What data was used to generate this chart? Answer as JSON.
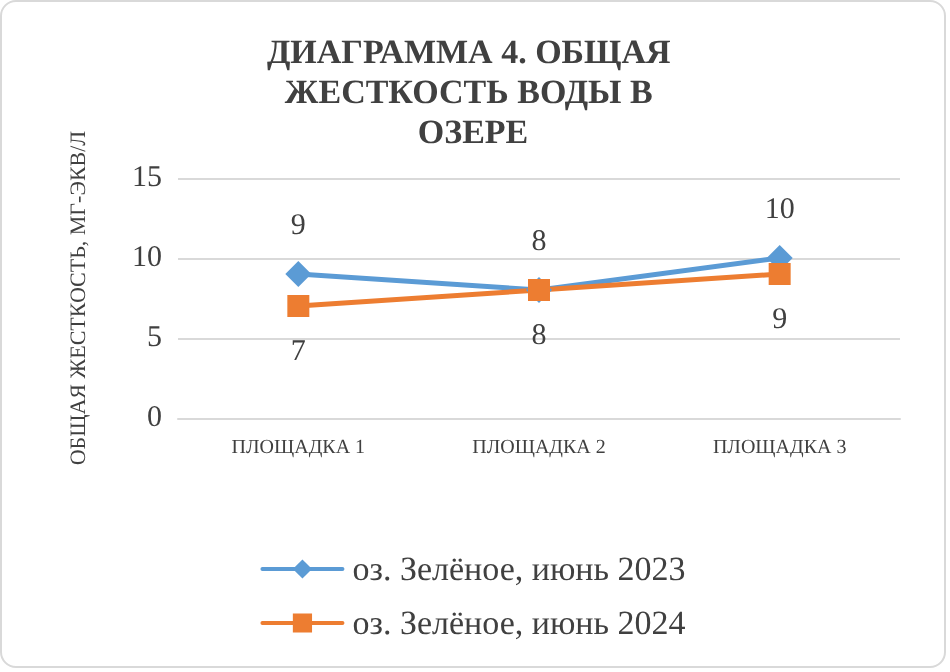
{
  "chart_data": {
    "type": "line",
    "title": "ДИАГРАММА 4. ОБЩАЯ ЖЕСТКОСТЬ ВОДЫ В ОЗЕРЕ",
    "ylabel": "ОБЩАЯ ЖЕСТКОСТЬ, МГ-ЭКВ/Л",
    "categories": [
      "ПЛОЩАДКА 1",
      "ПЛОЩАДКА 2",
      "ПЛОЩАДКА 3"
    ],
    "series": [
      {
        "name": "оз. Зелёное, июнь 2023",
        "color": "#5b9bd5",
        "marker": "diamond",
        "values": [
          9,
          8,
          10
        ]
      },
      {
        "name": "оз. Зелёное, июнь 2024",
        "color": "#ed7d31",
        "marker": "square",
        "values": [
          7,
          8,
          9
        ]
      }
    ],
    "ylim": [
      0,
      15
    ],
    "yticks": [
      0,
      5,
      10,
      15
    ],
    "grid": "y",
    "legend": "bottom",
    "data_labels": true
  }
}
